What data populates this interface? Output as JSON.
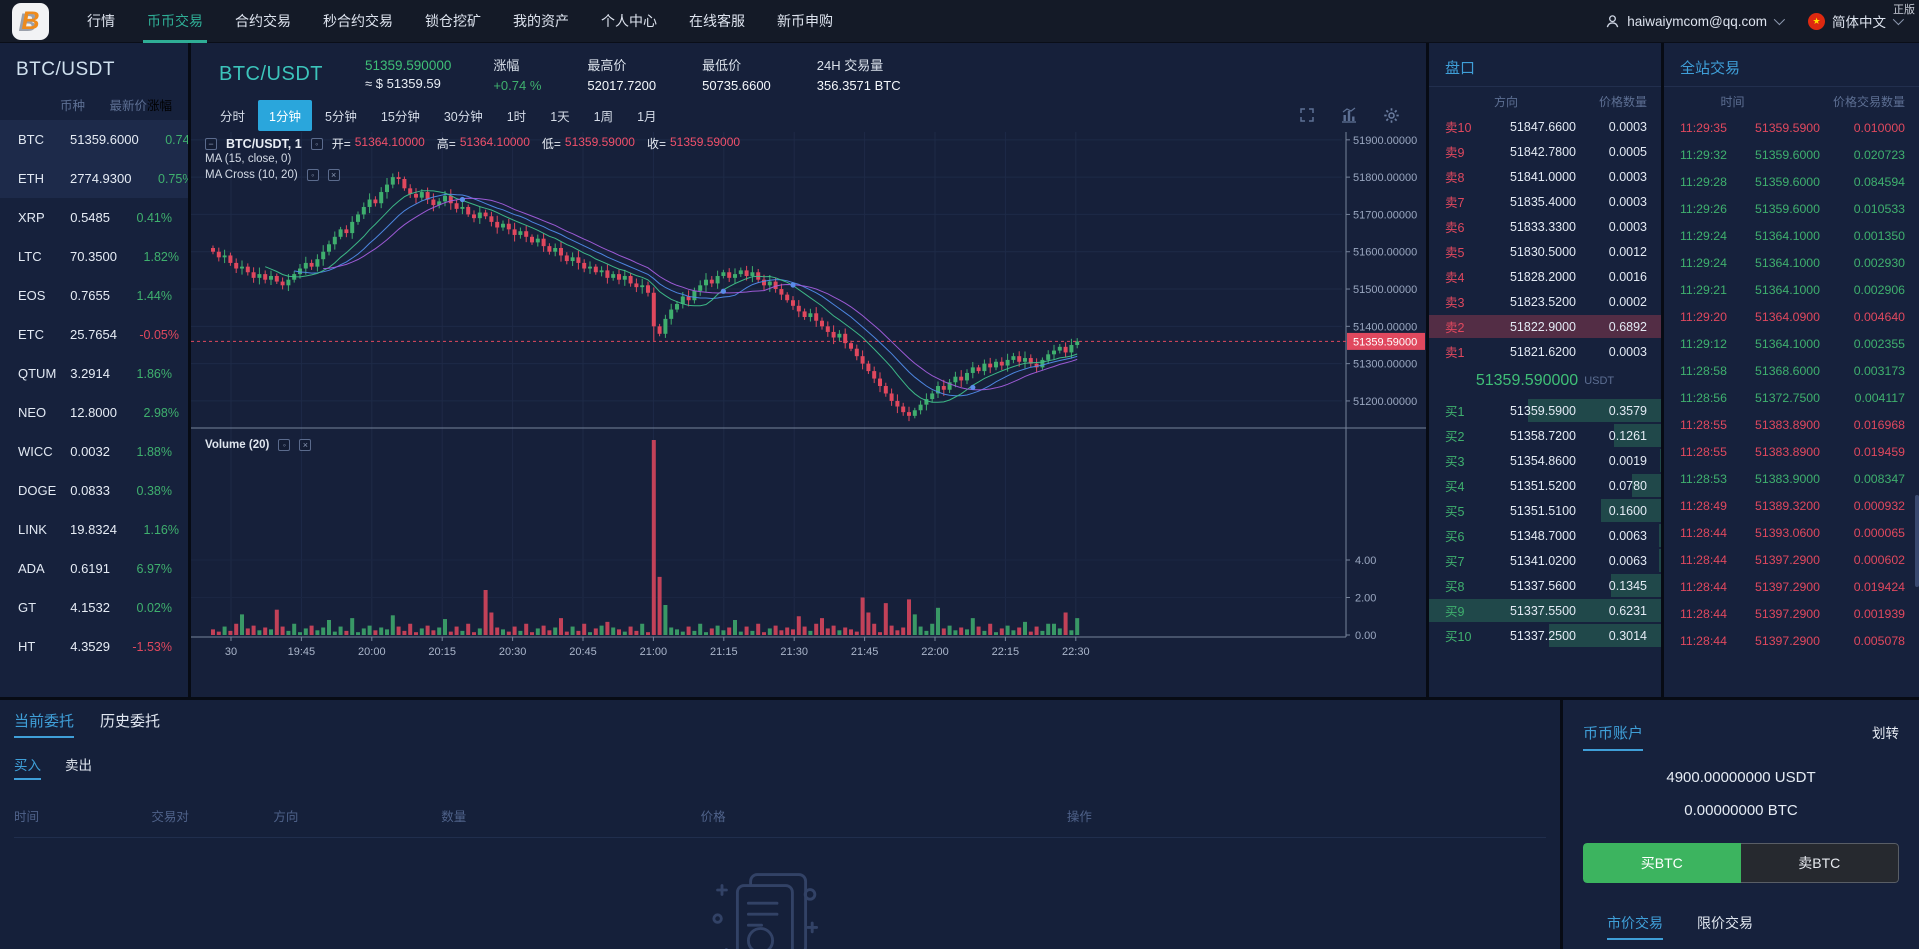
{
  "badge": "正版",
  "nav": {
    "logo_letter": "B",
    "items": [
      {
        "label": "行情",
        "cls": ""
      },
      {
        "label": "币币交易",
        "cls": "active"
      },
      {
        "label": "合约交易",
        "cls": ""
      },
      {
        "label": "秒合约交易",
        "cls": ""
      },
      {
        "label": "锁仓挖矿",
        "cls": ""
      },
      {
        "label": "我的资产",
        "cls": ""
      },
      {
        "label": "个人中心",
        "cls": ""
      },
      {
        "label": "在线客服",
        "cls": ""
      },
      {
        "label": "新币申购",
        "cls": ""
      }
    ],
    "user": "haiwaiymcom@qq.com",
    "lang": "简体中文"
  },
  "sidebar": {
    "title": "BTC/USDT",
    "columns": [
      "币种",
      "最新价",
      "涨幅"
    ],
    "coins": [
      {
        "sym": "BTC",
        "price": "51359.6000",
        "chg": "0.74%",
        "cls": "up hl"
      },
      {
        "sym": "ETH",
        "price": "2774.9300",
        "chg": "0.75%",
        "cls": "up hl"
      },
      {
        "sym": "XRP",
        "price": "0.5485",
        "chg": "0.41%",
        "cls": "up"
      },
      {
        "sym": "LTC",
        "price": "70.3500",
        "chg": "1.82%",
        "cls": "up"
      },
      {
        "sym": "EOS",
        "price": "0.7655",
        "chg": "1.44%",
        "cls": "up"
      },
      {
        "sym": "ETC",
        "price": "25.7654",
        "chg": "-0.05%",
        "cls": "down"
      },
      {
        "sym": "QTUM",
        "price": "3.2914",
        "chg": "1.86%",
        "cls": "up"
      },
      {
        "sym": "NEO",
        "price": "12.8000",
        "chg": "2.98%",
        "cls": "up"
      },
      {
        "sym": "WICC",
        "price": "0.0032",
        "chg": "1.88%",
        "cls": "up"
      },
      {
        "sym": "DOGE",
        "price": "0.0833",
        "chg": "0.38%",
        "cls": "up"
      },
      {
        "sym": "LINK",
        "price": "19.8324",
        "chg": "1.16%",
        "cls": "up"
      },
      {
        "sym": "ADA",
        "price": "0.6191",
        "chg": "6.97%",
        "cls": "up"
      },
      {
        "sym": "GT",
        "price": "4.1532",
        "chg": "0.02%",
        "cls": "up"
      },
      {
        "sym": "HT",
        "price": "4.3529",
        "chg": "-1.53%",
        "cls": "down"
      }
    ]
  },
  "market": {
    "pair": "BTC/USDT",
    "price": "51359.590000",
    "approx": "≈ $ 51359.59",
    "stats": [
      {
        "label": "涨幅",
        "value": "+0.74 %",
        "cls": "up"
      },
      {
        "label": "最高价",
        "value": "52017.7200",
        "cls": ""
      },
      {
        "label": "最低价",
        "value": "50735.6600",
        "cls": ""
      },
      {
        "label": "24H 交易量",
        "value": "356.3571 BTC",
        "cls": ""
      }
    ],
    "timeframes": [
      {
        "label": "分时",
        "cls": ""
      },
      {
        "label": "1分钟",
        "cls": "active"
      },
      {
        "label": "5分钟",
        "cls": ""
      },
      {
        "label": "15分钟",
        "cls": ""
      },
      {
        "label": "30分钟",
        "cls": ""
      },
      {
        "label": "1时",
        "cls": ""
      },
      {
        "label": "1天",
        "cls": ""
      },
      {
        "label": "1周",
        "cls": ""
      },
      {
        "label": "1月",
        "cls": ""
      }
    ],
    "legend": {
      "title": "BTC/USDT, 1",
      "ohlc": [
        {
          "k": "开=",
          "v": "51364.10000"
        },
        {
          "k": "高=",
          "v": "51364.10000"
        },
        {
          "k": "低=",
          "v": "51359.59000"
        },
        {
          "k": "收=",
          "v": "51359.59000"
        }
      ],
      "ma1": "MA (15, close, 0)",
      "ma2": "MA Cross (10, 20)",
      "vol": "Volume (20)"
    }
  },
  "chart_data": {
    "type": "candlestick",
    "pair": "BTC/USDT",
    "interval_minutes": 1,
    "open0": 51610,
    "x_ticks": [
      "30",
      "19:45",
      "20:00",
      "20:15",
      "20:30",
      "20:45",
      "21:00",
      "21:15",
      "21:30",
      "21:45",
      "22:00",
      "22:15",
      "22:30"
    ],
    "y_ticks": [
      {
        "v": 51900,
        "label": "51900.00000"
      },
      {
        "v": 51800,
        "label": "51800.00000"
      },
      {
        "v": 51700,
        "label": "51700.00000"
      },
      {
        "v": 51600,
        "label": "51600.00000"
      },
      {
        "v": 51500,
        "label": "51500.00000"
      },
      {
        "v": 51400,
        "label": "51400.00000"
      },
      {
        "v": 51300,
        "label": "51300.00000"
      },
      {
        "v": 51200,
        "label": "51200.00000"
      }
    ],
    "vol_ticks": [
      {
        "v": 4,
        "label": "4.00"
      },
      {
        "v": 2,
        "label": "2.00"
      },
      {
        "v": 0,
        "label": "0.00"
      }
    ],
    "current": {
      "value": 51359.59,
      "label": "51359.59000"
    },
    "ma_periods": [
      10,
      15,
      20
    ],
    "closes": [
      51600,
      51585,
      51590,
      51570,
      51555,
      51560,
      51545,
      51530,
      51540,
      51525,
      51535,
      51520,
      51510,
      51525,
      51540,
      51555,
      51570,
      51560,
      51580,
      51600,
      51620,
      51640,
      51660,
      51650,
      51680,
      51700,
      51720,
      51740,
      51730,
      51760,
      51780,
      51800,
      51795,
      51770,
      51755,
      51745,
      51760,
      51740,
      51725,
      51735,
      51750,
      51730,
      51715,
      51720,
      51700,
      51690,
      51705,
      51695,
      51680,
      51665,
      51675,
      51660,
      51645,
      51655,
      51640,
      51625,
      51635,
      51615,
      51600,
      51610,
      51590,
      51575,
      51585,
      51570,
      51555,
      51560,
      51545,
      51550,
      51530,
      51540,
      51525,
      51535,
      51515,
      51505,
      51510,
      51490,
      51400,
      51380,
      51420,
      51445,
      51460,
      51480,
      51470,
      51495,
      51510,
      51525,
      51515,
      51535,
      51545,
      51530,
      51540,
      51550,
      51535,
      51545,
      51525,
      51510,
      51520,
      51500,
      51485,
      51470,
      51455,
      51440,
      51425,
      51435,
      51415,
      51400,
      51385,
      51370,
      51380,
      51355,
      51340,
      51320,
      51300,
      51280,
      51260,
      51240,
      51220,
      51200,
      51185,
      51170,
      51160,
      51175,
      51190,
      51205,
      51220,
      51240,
      51230,
      51250,
      51265,
      51255,
      51275,
      51290,
      51280,
      51300,
      51290,
      51305,
      51295,
      51310,
      51320,
      51305,
      51315,
      51300,
      51290,
      51310,
      51325,
      51335,
      51345,
      51330,
      51350,
      51359.59
    ],
    "volumes": [
      0.3,
      0.18,
      0.45,
      0.22,
      0.6,
      1.1,
      0.35,
      0.5,
      0.25,
      0.4,
      0.3,
      1.35,
      0.45,
      0.22,
      0.6,
      0.15,
      0.35,
      0.5,
      0.25,
      0.4,
      0.8,
      0.18,
      0.45,
      0.22,
      0.9,
      0.15,
      0.35,
      0.5,
      0.25,
      0.4,
      0.3,
      1.05,
      0.45,
      0.22,
      0.6,
      0.15,
      0.35,
      0.5,
      0.25,
      0.4,
      0.85,
      0.18,
      0.45,
      0.22,
      0.6,
      0.15,
      0.35,
      2.4,
      1.2,
      0.4,
      0.3,
      0.18,
      0.45,
      0.22,
      0.6,
      0.15,
      0.35,
      0.5,
      0.25,
      0.4,
      0.9,
      0.18,
      0.45,
      0.22,
      0.6,
      0.15,
      0.35,
      0.5,
      0.7,
      0.4,
      0.3,
      0.18,
      0.45,
      0.22,
      0.6,
      0.15,
      10.4,
      3.1,
      1.6,
      0.4,
      0.3,
      0.18,
      0.45,
      0.22,
      0.6,
      0.15,
      0.35,
      0.5,
      0.25,
      0.4,
      0.8,
      0.18,
      0.45,
      0.22,
      0.6,
      0.15,
      0.35,
      0.5,
      0.25,
      0.4,
      0.3,
      1.0,
      0.45,
      0.22,
      0.6,
      0.9,
      0.35,
      0.5,
      0.25,
      0.4,
      0.3,
      0.18,
      2.0,
      1.2,
      0.6,
      0.15,
      1.7,
      0.5,
      0.25,
      0.4,
      1.9,
      1.1,
      0.45,
      0.22,
      0.6,
      1.45,
      0.35,
      0.5,
      0.25,
      0.4,
      0.3,
      0.9,
      0.45,
      0.22,
      0.6,
      0.15,
      0.35,
      0.5,
      0.25,
      0.4,
      0.7,
      0.18,
      0.45,
      0.22,
      0.6,
      0.6,
      0.35,
      1.2,
      0.25,
      0.9
    ]
  },
  "orderbook": {
    "title": "盘口",
    "columns": [
      "方向",
      "价格",
      "数量"
    ],
    "asks": [
      {
        "label": "卖10",
        "price": "51847.6600",
        "q": "0.0003"
      },
      {
        "label": "卖9",
        "price": "51842.7800",
        "q": "0.0005"
      },
      {
        "label": "卖8",
        "price": "51841.0000",
        "q": "0.0003"
      },
      {
        "label": "卖7",
        "price": "51835.4000",
        "q": "0.0003"
      },
      {
        "label": "卖6",
        "price": "51833.3300",
        "q": "0.0003"
      },
      {
        "label": "卖5",
        "price": "51830.5000",
        "q": "0.0012"
      },
      {
        "label": "卖4",
        "price": "51828.2000",
        "q": "0.0016"
      },
      {
        "label": "卖3",
        "price": "51823.5200",
        "q": "0.0002"
      },
      {
        "label": "卖2",
        "price": "51822.9000",
        "q": "0.6892"
      },
      {
        "label": "卖1",
        "price": "51821.6200",
        "q": "0.0003"
      }
    ],
    "mid": {
      "price": "51359.590000",
      "unit": "USDT"
    },
    "bids": [
      {
        "label": "买1",
        "price": "51359.5900",
        "q": "0.3579"
      },
      {
        "label": "买2",
        "price": "51358.7200",
        "q": "0.1261"
      },
      {
        "label": "买3",
        "price": "51354.8600",
        "q": "0.0019"
      },
      {
        "label": "买4",
        "price": "51351.5200",
        "q": "0.0780"
      },
      {
        "label": "买5",
        "price": "51351.5100",
        "q": "0.1600"
      },
      {
        "label": "买6",
        "price": "51348.7000",
        "q": "0.0063"
      },
      {
        "label": "买7",
        "price": "51341.0200",
        "q": "0.0063"
      },
      {
        "label": "买8",
        "price": "51337.5600",
        "q": "0.1345"
      },
      {
        "label": "买9",
        "price": "51337.5500",
        "q": "0.6231"
      },
      {
        "label": "买10",
        "price": "51337.2500",
        "q": "0.3014"
      }
    ]
  },
  "trades": {
    "title": "全站交易",
    "columns": [
      "时间",
      "价格",
      "交易数量"
    ],
    "rows": [
      {
        "t": "11:29:35",
        "p": "51359.5900",
        "q": "0.010000",
        "cls": "sell"
      },
      {
        "t": "11:29:32",
        "p": "51359.6000",
        "q": "0.020723",
        "cls": "buy"
      },
      {
        "t": "11:29:28",
        "p": "51359.6000",
        "q": "0.084594",
        "cls": "buy"
      },
      {
        "t": "11:29:26",
        "p": "51359.6000",
        "q": "0.010533",
        "cls": "buy"
      },
      {
        "t": "11:29:24",
        "p": "51364.1000",
        "q": "0.001350",
        "cls": "buy"
      },
      {
        "t": "11:29:24",
        "p": "51364.1000",
        "q": "0.002930",
        "cls": "buy"
      },
      {
        "t": "11:29:21",
        "p": "51364.1000",
        "q": "0.002906",
        "cls": "buy"
      },
      {
        "t": "11:29:20",
        "p": "51364.0900",
        "q": "0.004640",
        "cls": "sell"
      },
      {
        "t": "11:29:12",
        "p": "51364.1000",
        "q": "0.002355",
        "cls": "buy"
      },
      {
        "t": "11:28:58",
        "p": "51368.6000",
        "q": "0.003173",
        "cls": "buy"
      },
      {
        "t": "11:28:56",
        "p": "51372.7500",
        "q": "0.004117",
        "cls": "buy"
      },
      {
        "t": "11:28:55",
        "p": "51383.8900",
        "q": "0.016968",
        "cls": "sell"
      },
      {
        "t": "11:28:55",
        "p": "51383.8900",
        "q": "0.019459",
        "cls": "sell"
      },
      {
        "t": "11:28:53",
        "p": "51383.9000",
        "q": "0.008347",
        "cls": "buy"
      },
      {
        "t": "11:28:49",
        "p": "51389.3200",
        "q": "0.000932",
        "cls": "sell"
      },
      {
        "t": "11:28:44",
        "p": "51393.0600",
        "q": "0.000065",
        "cls": "sell"
      },
      {
        "t": "11:28:44",
        "p": "51397.2900",
        "q": "0.000602",
        "cls": "sell"
      },
      {
        "t": "11:28:44",
        "p": "51397.2900",
        "q": "0.019424",
        "cls": "sell"
      },
      {
        "t": "11:28:44",
        "p": "51397.2900",
        "q": "0.001939",
        "cls": "sell"
      },
      {
        "t": "11:28:44",
        "p": "51397.2900",
        "q": "0.005078",
        "cls": "sell"
      }
    ]
  },
  "orders": {
    "tabs": [
      {
        "label": "当前委托",
        "cls": "active"
      },
      {
        "label": "历史委托",
        "cls": ""
      }
    ],
    "subtabs": [
      {
        "label": "买入",
        "cls": "active"
      },
      {
        "label": "卖出",
        "cls": ""
      }
    ],
    "columns": [
      "时间",
      "交易对",
      "方向",
      "数量",
      "价格",
      "操作"
    ]
  },
  "account": {
    "title": "币币账户",
    "transfer": "划转",
    "balances": [
      "4900.00000000 USDT",
      "0.00000000 BTC"
    ],
    "buy": "买BTC",
    "sell": "卖BTC",
    "tabs": [
      {
        "label": "市价交易",
        "cls": "active"
      },
      {
        "label": "限价交易",
        "cls": ""
      }
    ]
  }
}
